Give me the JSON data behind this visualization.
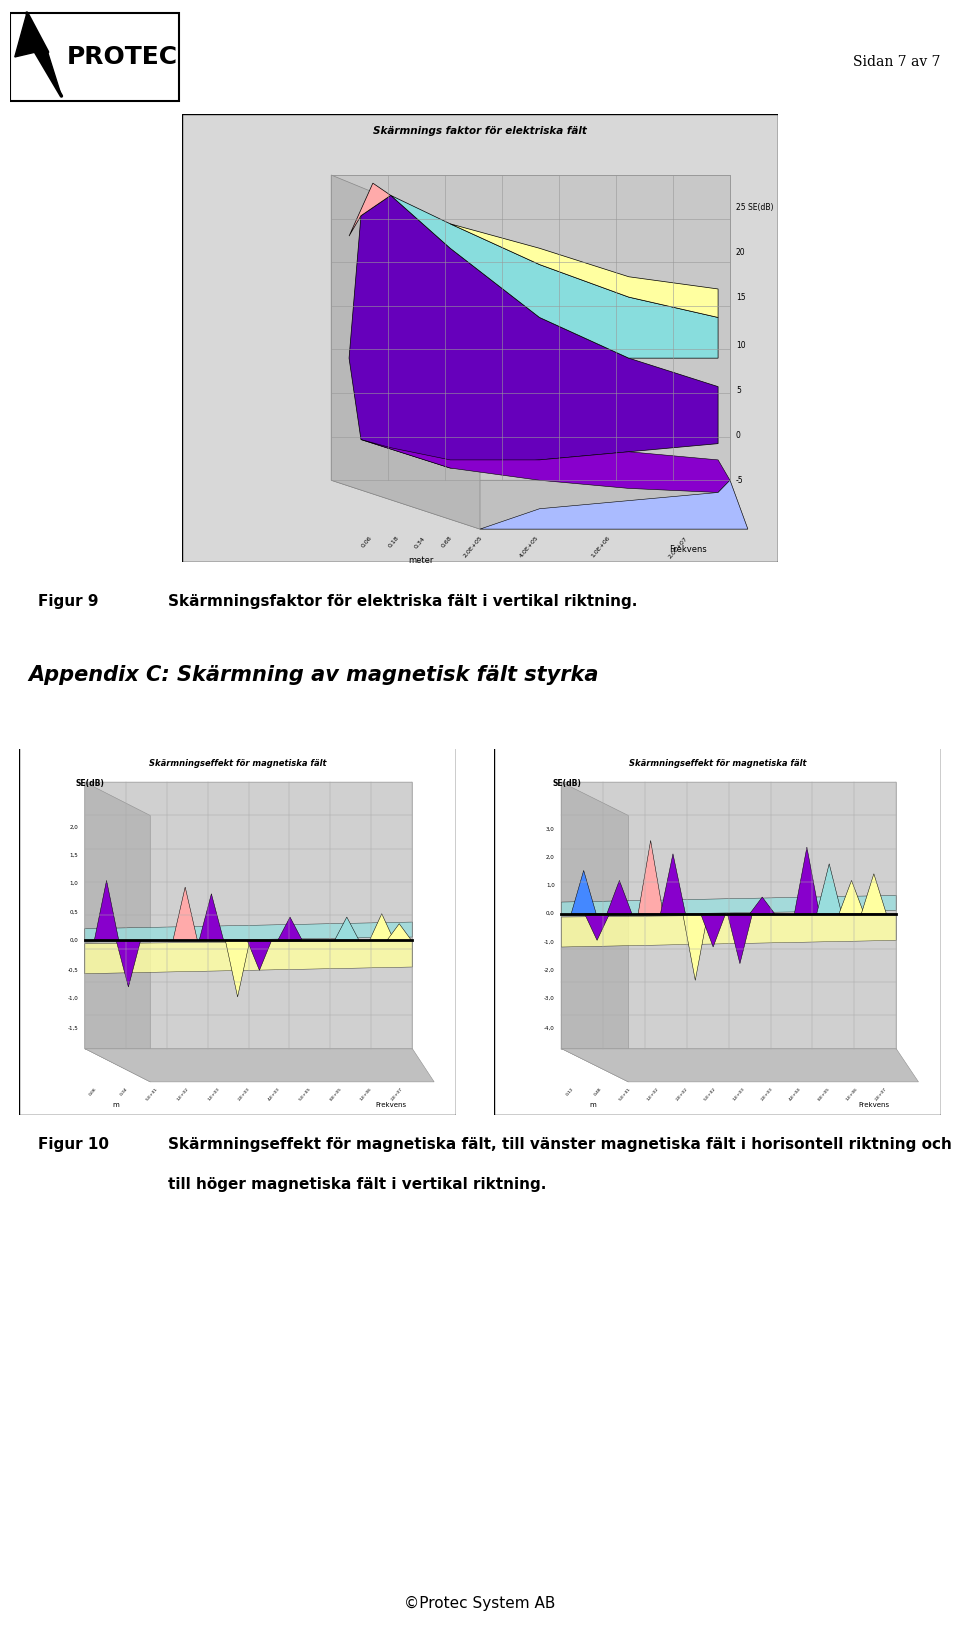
{
  "page_title": "Sidan 7 av 7",
  "fig9_title": "Figur 9",
  "fig9_caption": "Skärmningsfaktor för elektriska fält i vertikal riktning.",
  "appendix_title": "Appendix C: Skärmning av magnetisk fält styrka",
  "fig10_title": "Figur 10",
  "fig10_caption_line1": "Skärmningseffekt för magnetiska fält, till vänster magnetiska fält i horisontell riktning och",
  "fig10_caption_line2": "till höger magnetiska fält i vertikal riktning.",
  "footer": "©Protec System AB",
  "chart1_title": "Skärmnings faktor för elektriska fält",
  "chart1_yticks": [
    "-5",
    "0",
    "5",
    "10",
    "15",
    "20",
    "25 SE(dB)"
  ],
  "chart1_meter_ticks": [
    "0,06",
    "0,18",
    "0,34",
    "0,68",
    "2,0E+05"
  ],
  "chart1_freq_ticks": [
    "4,0E+05",
    "1,0E+06",
    "2,0E+07"
  ],
  "chart1_xlabel_meter": "meter",
  "chart1_xlabel_freq": "Frekvens",
  "chart2_title": "Skärmningseffekt för magnetiska fält",
  "chart2_ylabel": "SE(dB)",
  "chart2_yticks": [
    "-1,5",
    "-1,0",
    "-0,5",
    "0,0",
    "0,5",
    "1,0",
    "1,5",
    "2,0"
  ],
  "chart2_meter_ticks": [
    "0,06",
    "0,34",
    "5,E+01",
    "1,E+02",
    "1,E+03",
    "2,E+03",
    "4,E+03",
    "5,E+05",
    "8,E+05",
    "1,E+06",
    "2,E+07"
  ],
  "chart2_xlabel_meter": "m",
  "chart2_xlabel_freq": "Frekvens",
  "chart3_title": "Skärmningseffekt för magnetiska fält",
  "chart3_ylabel": "SE(dB)",
  "chart3_yticks": [
    "-4,0",
    "-3,0",
    "-2,0",
    "-1,0",
    "0,0",
    "1,0",
    "2,0",
    "3,0"
  ],
  "chart3_meter_ticks": [
    "0,12",
    "0,48",
    "5,E+01",
    "1,E+02",
    "2,E+02",
    "5,E+02",
    "1,E+03",
    "2,E+03",
    "4,E+04",
    "8,E+05",
    "1,E+06",
    "2,E+07"
  ],
  "chart3_xlabel_meter": "m",
  "chart3_xlabel_freq": "Frekvens",
  "bg_color": "#ffffff",
  "logo_color": "#000000",
  "logo_text": "PROTEC",
  "page_bg": "#ffffff"
}
